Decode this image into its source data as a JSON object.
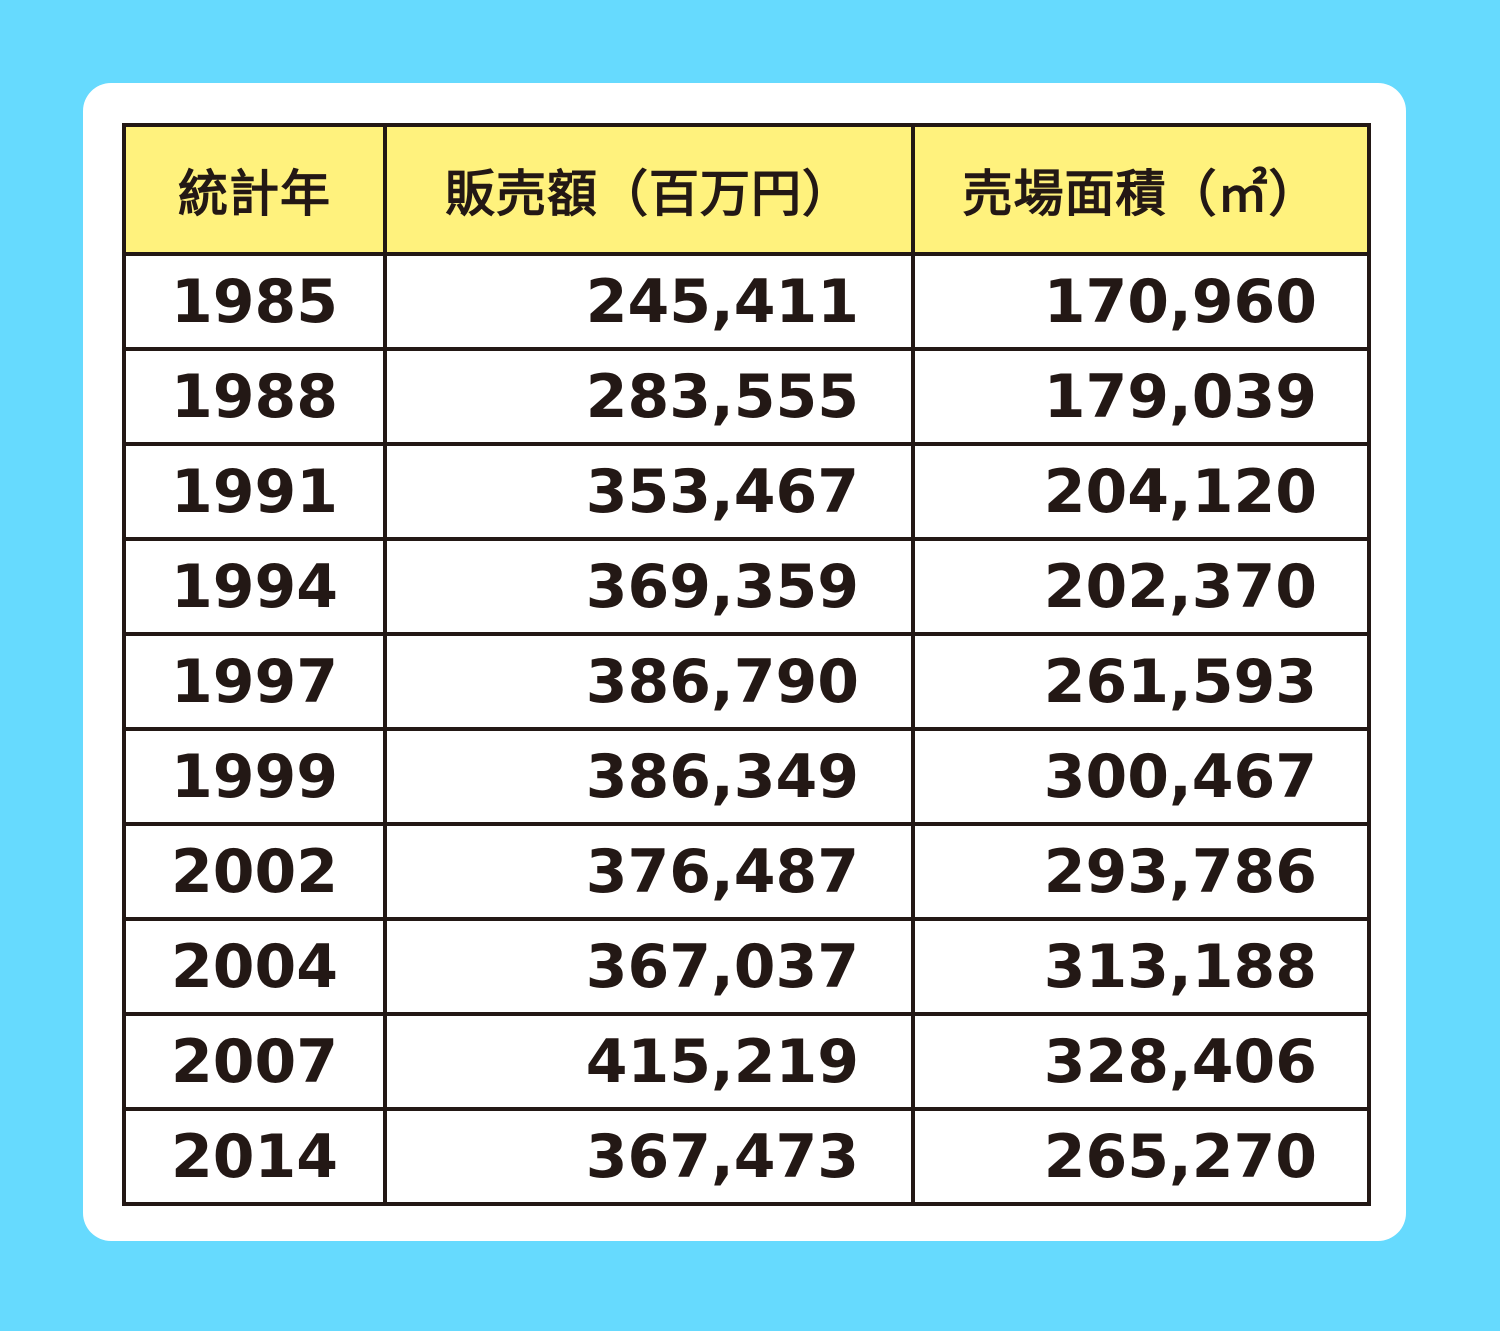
{
  "colors": {
    "background": "#66dafe",
    "card": "#ffffff",
    "header_fill": "#fff27d",
    "grid": "#231815",
    "text": "#231815"
  },
  "chart_data": {
    "type": "table",
    "columns": [
      "統計年",
      "販売額（百万円）",
      "売場面積（㎡）"
    ],
    "rows": [
      [
        "1985",
        "245,411",
        "170,960"
      ],
      [
        "1988",
        "283,555",
        "179,039"
      ],
      [
        "1991",
        "353,467",
        "204,120"
      ],
      [
        "1994",
        "369,359",
        "202,370"
      ],
      [
        "1997",
        "386,790",
        "261,593"
      ],
      [
        "1999",
        "386,349",
        "300,467"
      ],
      [
        "2002",
        "376,487",
        "293,786"
      ],
      [
        "2004",
        "367,037",
        "313,188"
      ],
      [
        "2007",
        "415,219",
        "328,406"
      ],
      [
        "2014",
        "367,473",
        "265,270"
      ]
    ]
  }
}
